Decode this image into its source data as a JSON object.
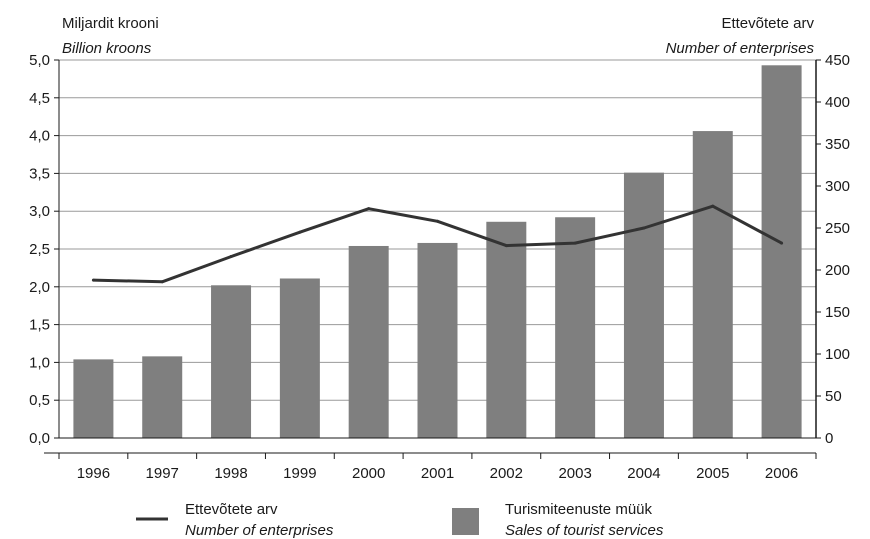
{
  "chart_data": {
    "type": "bar+line",
    "left_axis": {
      "label": "Miljardit krooni",
      "label_en": "Billion kroons",
      "ylim": [
        0,
        5
      ],
      "ticks": [
        "0,0",
        "0,5",
        "1,0",
        "1,5",
        "2,0",
        "2,5",
        "3,0",
        "3,5",
        "4,0",
        "4,5",
        "5,0"
      ]
    },
    "right_axis": {
      "label": "Ettevõtete arv",
      "label_en": "Number of enterprises",
      "ylim": [
        0,
        450
      ],
      "ticks": [
        "0",
        "50",
        "100",
        "150",
        "200",
        "250",
        "300",
        "350",
        "400",
        "450"
      ]
    },
    "categories": [
      "1996",
      "1997",
      "1998",
      "1999",
      "2000",
      "2001",
      "2002",
      "2003",
      "2004",
      "2005",
      "2006"
    ],
    "series": [
      {
        "name": "Turismiteenuste müük",
        "name_en": "Sales of tourist services",
        "type": "bar",
        "axis": "left",
        "color": "#7f7f7f",
        "values": [
          1.04,
          1.08,
          2.02,
          2.11,
          2.54,
          2.58,
          2.86,
          2.92,
          3.51,
          4.06,
          4.93
        ]
      },
      {
        "name": "Ettevõtete arv",
        "name_en": "Number of enterprises",
        "type": "line",
        "axis": "right",
        "color": "#333333",
        "values": [
          188,
          186,
          216,
          245,
          273,
          258,
          229,
          232,
          250,
          276,
          232
        ]
      }
    ],
    "grid": true,
    "legend": "bottom"
  }
}
